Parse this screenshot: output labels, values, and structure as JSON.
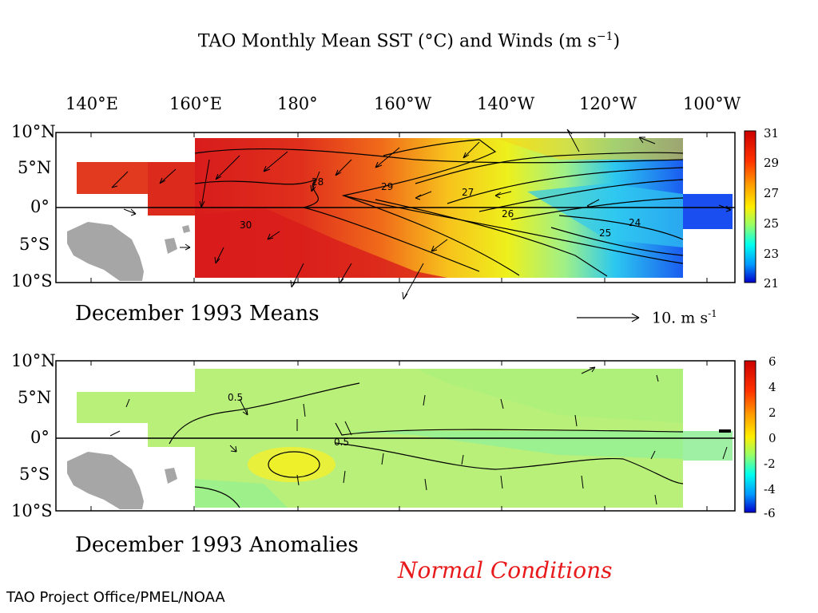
{
  "title_main": "TAO Monthly Mean SST (°C) and Winds (m s",
  "title_sup": "−1",
  "title_close": ")",
  "lon_labels": [
    "140°E",
    "160°E",
    "180°",
    "160°W",
    "140°W",
    "120°W",
    "100°W"
  ],
  "lat_labels": [
    "10°N",
    "5°N",
    "0°",
    "5°S",
    "10°S"
  ],
  "top_panel": {
    "caption": "December 1993 Means",
    "scale_value": "10.",
    "scale_unit": "m s",
    "scale_sup": "-1",
    "contour_labels": [
      "30",
      "29",
      "28",
      "27",
      "26",
      "25",
      "24"
    ],
    "colorbar_ticks": [
      "31",
      "29",
      "27",
      "25",
      "23",
      "21"
    ]
  },
  "bottom_panel": {
    "caption": "December 1993 Anomalies",
    "contour_labels": [
      "0.5",
      "0.5"
    ],
    "colorbar_ticks": [
      "6",
      "4",
      "2",
      "0",
      "-2",
      "-4",
      "-6"
    ]
  },
  "conditions": "Normal Conditions",
  "credit": "TAO Project Office/PMEL/NOAA",
  "colors": {
    "normal_text": "#e8191a",
    "land": "#a6a6a6",
    "warm": "#d81a1a",
    "cool": "#1a5cf0"
  }
}
